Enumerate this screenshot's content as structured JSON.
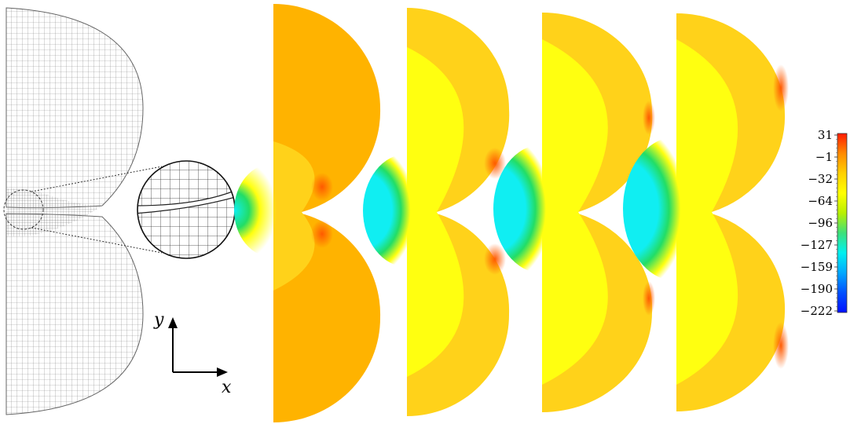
{
  "figure": {
    "axes_indicator": {
      "x_label": "x",
      "y_label": "y"
    },
    "panels": [
      {
        "name": "mesh"
      },
      {
        "name": "field-1"
      },
      {
        "name": "field-2"
      },
      {
        "name": "field-3"
      },
      {
        "name": "field-4"
      }
    ],
    "colorbar": {
      "ticks": [
        "31",
        "−1",
        "−32",
        "−64",
        "−96",
        "−127",
        "−159",
        "−190",
        "−222"
      ],
      "colors": [
        "#ff1a00",
        "#ff8a00",
        "#ffd000",
        "#ffff00",
        "#b8f000",
        "#3de07a",
        "#00f0f0",
        "#00a8ff",
        "#0050ff",
        "#0010ff"
      ]
    },
    "colors": {
      "orange": "#ffb300",
      "yellow_orange": "#ffd21a",
      "yellow": "#ffff10",
      "green": "#22dd66",
      "cyan": "#10eef2",
      "red": "#ff5a00",
      "mesh_line": "#888888"
    }
  }
}
